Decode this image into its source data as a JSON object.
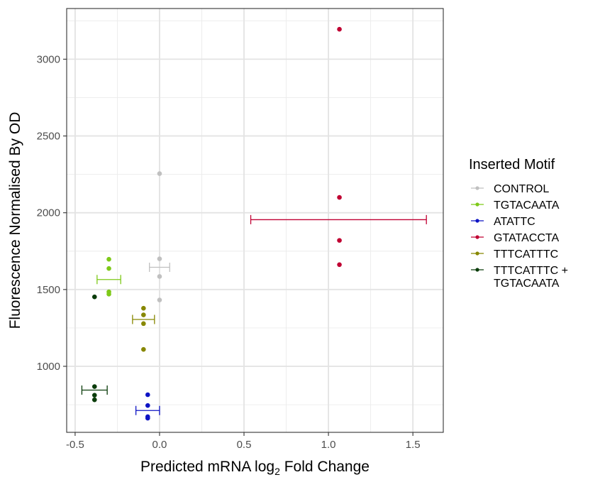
{
  "chart_data": {
    "type": "scatter",
    "xlabel": {
      "pre": "Predicted mRNA log",
      "sub": "2",
      "post": " Fold Change"
    },
    "ylabel": "Fluorescence Normalised By OD",
    "xlim": [
      -0.55,
      1.68
    ],
    "ylim": [
      570,
      3330
    ],
    "x_ticks": [
      -0.5,
      0.0,
      0.5,
      1.0,
      1.5
    ],
    "x_tick_labels": [
      "-0.5",
      "0.0",
      "0.5",
      "1.0",
      "1.5"
    ],
    "y_ticks": [
      1000,
      1500,
      2000,
      2500,
      3000
    ],
    "y_tick_labels": [
      "1000",
      "1500",
      "2000",
      "2500",
      "3000"
    ],
    "grid": true,
    "legend": {
      "title": "Inserted Motif",
      "placement": "right"
    },
    "series": [
      {
        "name": "CONTROL",
        "label_lines": [
          "CONTROL"
        ],
        "color": "#c0c0c0",
        "points": [
          [
            0.0,
            2255
          ],
          [
            0.0,
            1700
          ],
          [
            0.0,
            1585
          ],
          [
            0.0,
            1432
          ]
        ],
        "error_bar": {
          "x_min": -0.06,
          "x_max": 0.06,
          "y": 1645
        }
      },
      {
        "name": "TGTACAATA",
        "label_lines": [
          "TGTACAATA"
        ],
        "color": "#7ec919",
        "points": [
          [
            -0.3,
            1697
          ],
          [
            -0.3,
            1637
          ],
          [
            -0.3,
            1485
          ],
          [
            -0.3,
            1470
          ]
        ],
        "error_bar": {
          "x_min": -0.37,
          "x_max": -0.23,
          "y": 1565
        }
      },
      {
        "name": "ATATTC",
        "label_lines": [
          "ATATTC"
        ],
        "color": "#0e14c4",
        "points": [
          [
            -0.07,
            815
          ],
          [
            -0.07,
            745
          ],
          [
            -0.07,
            672
          ],
          [
            -0.07,
            662
          ]
        ],
        "error_bar": {
          "x_min": -0.14,
          "x_max": 0.0,
          "y": 712
        }
      },
      {
        "name": "GTATACCTA",
        "label_lines": [
          "GTATACCTA"
        ],
        "color": "#c00032",
        "points": [
          [
            1.065,
            3195
          ],
          [
            1.065,
            2100
          ],
          [
            1.065,
            1820
          ],
          [
            1.065,
            1662
          ]
        ],
        "error_bar": {
          "x_min": 0.54,
          "x_max": 1.58,
          "y": 1955
        }
      },
      {
        "name": "TTTCATTTC",
        "label_lines": [
          "TTTCATTTC"
        ],
        "color": "#878700",
        "points": [
          [
            -0.095,
            1378
          ],
          [
            -0.095,
            1335
          ],
          [
            -0.095,
            1278
          ],
          [
            -0.095,
            1110
          ]
        ],
        "error_bar": {
          "x_min": -0.16,
          "x_max": -0.03,
          "y": 1305
        }
      },
      {
        "name": "TTTCATTTC + TGTACAATA",
        "label_lines": [
          "TTTCATTTC +",
          "TGTACAATA"
        ],
        "color": "#0a3c0a",
        "points": [
          [
            -0.385,
            1452
          ],
          [
            -0.385,
            868
          ],
          [
            -0.385,
            812
          ],
          [
            -0.385,
            782
          ]
        ],
        "error_bar": {
          "x_min": -0.46,
          "x_max": -0.31,
          "y": 845
        }
      }
    ]
  }
}
